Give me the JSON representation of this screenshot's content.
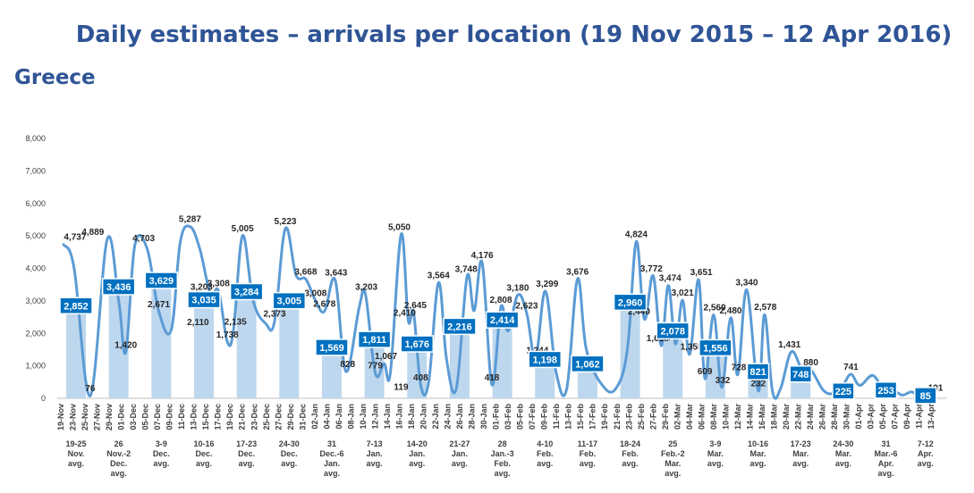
{
  "title": "Daily estimates – arrivals per location (19 Nov 2015 – 12 Apr 2016)",
  "subtitle": "Greece",
  "colors": {
    "bar": "#bdd7ee",
    "line": "#5b9bd5",
    "box": "#0070c0",
    "title": "#2f5496",
    "grid": "#d9d9d9"
  },
  "chart_data": {
    "type": "bar+line",
    "ylim": [
      0,
      8000
    ],
    "yticks": [
      "0",
      "1,000",
      "2,000",
      "3,000",
      "4,000",
      "5,000",
      "6,000",
      "7,000",
      "8,000"
    ],
    "daily_dates": [
      "19-Nov",
      "23-Nov",
      "25-Nov",
      "27-Nov",
      "29-Nov",
      "01-Dec",
      "03-Dec",
      "05-Dec",
      "07-Dec",
      "09-Dec",
      "11-Dec",
      "13-Dec",
      "15-Dec",
      "17-Dec",
      "19-Dec",
      "21-Dec",
      "23-Dec",
      "25-Dec",
      "27-Dec",
      "29-Dec",
      "31-Dec",
      "02-Jan",
      "04-Jan",
      "06-Jan",
      "08-Jan",
      "10-Jan",
      "12-Jan",
      "14-Jan",
      "16-Jan",
      "18-Jan",
      "20-Jan",
      "22-Jan",
      "24-Jan",
      "26-Jan",
      "28-Jan",
      "30-Jan",
      "01-Feb",
      "03-Feb",
      "05-Feb",
      "07-Feb",
      "09-Feb",
      "11-Feb",
      "13-Feb",
      "15-Feb",
      "17-Feb",
      "19-Feb",
      "21-Feb",
      "23-Feb",
      "25-Feb",
      "27-Feb",
      "29-Feb",
      "02-Mar",
      "04-Mar",
      "06-Mar",
      "08-Mar",
      "10-Mar",
      "12-Mar",
      "14-Mar",
      "16-Mar",
      "18-Mar",
      "20-Mar",
      "22-Mar",
      "24-Mar",
      "26-Mar",
      "28-Mar",
      "30-Mar",
      "01-Apr",
      "03-Apr",
      "05-Apr",
      "07-Apr",
      "09-Apr",
      "11-Apr",
      "13-Apr"
    ],
    "daily_values": [
      [
        0.3,
        4737
      ],
      [
        1.5,
        4000
      ],
      [
        3.3,
        76
      ],
      [
        5.2,
        4889
      ],
      [
        6.5,
        3000
      ],
      [
        7.3,
        1420
      ],
      [
        8.3,
        4703
      ],
      [
        9.7,
        4600
      ],
      [
        11.0,
        2671
      ],
      [
        12.4,
        2110
      ],
      [
        13.4,
        4800
      ],
      [
        14.5,
        5287
      ],
      [
        15.6,
        4600
      ],
      [
        16.8,
        3203
      ],
      [
        17.7,
        3308
      ],
      [
        18.7,
        1738
      ],
      [
        19.4,
        2135
      ],
      [
        20.4,
        5005
      ],
      [
        21.6,
        3000
      ],
      [
        23.0,
        2300
      ],
      [
        24.0,
        2373
      ],
      [
        25.2,
        5223
      ],
      [
        26.4,
        3800
      ],
      [
        27.5,
        3668
      ],
      [
        28.6,
        3008
      ],
      [
        29.6,
        2678
      ],
      [
        30.8,
        3643
      ],
      [
        32.0,
        828
      ],
      [
        33.5,
        2800
      ],
      [
        34.2,
        3203
      ],
      [
        35.3,
        779
      ],
      [
        36.3,
        1067
      ],
      [
        37.0,
        800
      ],
      [
        38.2,
        5050
      ],
      [
        39.0,
        2410
      ],
      [
        39.6,
        2645
      ],
      [
        40.4,
        408
      ],
      [
        41.3,
        500
      ],
      [
        42.4,
        3564
      ],
      [
        43.3,
        1200
      ],
      [
        44.4,
        300
      ],
      [
        45.6,
        3748
      ],
      [
        46.4,
        2700
      ],
      [
        47.3,
        4176
      ],
      [
        48.4,
        418
      ],
      [
        49.4,
        2808
      ],
      [
        50.2,
        2076
      ],
      [
        51.3,
        3180
      ],
      [
        52.3,
        2623
      ],
      [
        53.3,
        1244
      ],
      [
        54.4,
        3299
      ],
      [
        55.6,
        800
      ],
      [
        56.8,
        300
      ],
      [
        58.0,
        3676
      ],
      [
        59.0,
        1500
      ],
      [
        60.8,
        400
      ],
      [
        62.3,
        300
      ],
      [
        63.6,
        1500
      ],
      [
        64.6,
        4824
      ],
      [
        65.5,
        2440
      ],
      [
        66.5,
        3772
      ],
      [
        67.4,
        1618
      ],
      [
        68.2,
        3474
      ],
      [
        69.0,
        1675
      ],
      [
        69.8,
        3021
      ],
      [
        70.6,
        1355
      ],
      [
        71.6,
        3651
      ],
      [
        72.3,
        609
      ],
      [
        73.3,
        2569
      ],
      [
        74.2,
        332
      ],
      [
        75.2,
        2480
      ],
      [
        76.0,
        728
      ],
      [
        77.0,
        3340
      ],
      [
        78.3,
        232
      ],
      [
        79.0,
        2578
      ],
      [
        79.9,
        200
      ],
      [
        80.8,
        300
      ],
      [
        82.0,
        1431
      ],
      [
        83.2,
        900
      ],
      [
        84.2,
        880
      ],
      [
        85.6,
        250
      ],
      [
        86.8,
        150
      ],
      [
        87.8,
        400
      ],
      [
        88.7,
        741
      ],
      [
        89.7,
        400
      ],
      [
        91.2,
        700
      ],
      [
        92.6,
        100
      ],
      [
        93.6,
        200
      ],
      [
        94.5,
        100
      ],
      [
        95.5,
        200
      ],
      [
        96.3,
        80
      ],
      [
        97.2,
        101
      ]
    ],
    "daily_labels": [
      {
        "text": "4,737",
        "v": 4737,
        "i": 1.6
      },
      {
        "text": "4,889",
        "v": 4889,
        "i": 3.6
      },
      {
        "text": "76",
        "v": 76,
        "i": 3.3
      },
      {
        "text": "4,703",
        "v": 4703,
        "i": 9.3
      },
      {
        "text": "1,420",
        "v": 1420,
        "i": 7.3
      },
      {
        "text": "2,671",
        "v": 2671,
        "i": 11.0
      },
      {
        "text": "5,287",
        "v": 5287,
        "i": 14.5
      },
      {
        "text": "3,203",
        "v": 3203,
        "i": 15.8
      },
      {
        "text": "2,110",
        "v": 2110,
        "i": 15.4
      },
      {
        "text": "3,308",
        "v": 3308,
        "i": 17.7
      },
      {
        "text": "1,738",
        "v": 1738,
        "i": 18.7
      },
      {
        "text": "2,135",
        "v": 2135,
        "i": 19.6
      },
      {
        "text": "5,005",
        "v": 5005,
        "i": 20.4
      },
      {
        "text": "5,223",
        "v": 5223,
        "i": 25.2
      },
      {
        "text": "2,373",
        "v": 2373,
        "i": 24.0
      },
      {
        "text": "3,668",
        "v": 3668,
        "i": 27.5
      },
      {
        "text": "3,008",
        "v": 3008,
        "i": 28.6
      },
      {
        "text": "3,643",
        "v": 3643,
        "i": 30.9
      },
      {
        "text": "2,678",
        "v": 2678,
        "i": 29.6
      },
      {
        "text": "828",
        "v": 828,
        "i": 32.2
      },
      {
        "text": "3,203",
        "v": 3203,
        "i": 34.3
      },
      {
        "text": "1,067",
        "v": 1067,
        "i": 36.5
      },
      {
        "text": "779",
        "v": 779,
        "i": 35.3
      },
      {
        "text": "5,050",
        "v": 5050,
        "i": 38.0
      },
      {
        "text": "2,410",
        "v": 2410,
        "i": 38.6
      },
      {
        "text": "2,645",
        "v": 2645,
        "i": 39.8
      },
      {
        "text": "119",
        "v": 119,
        "i": 38.2
      },
      {
        "text": "408",
        "v": 408,
        "i": 40.4
      },
      {
        "text": "3,564",
        "v": 3564,
        "i": 42.4
      },
      {
        "text": "3,748",
        "v": 3748,
        "i": 45.5
      },
      {
        "text": "4,176",
        "v": 4176,
        "i": 47.3
      },
      {
        "text": "2,808",
        "v": 2808,
        "i": 49.4
      },
      {
        "text": "418",
        "v": 418,
        "i": 48.4
      },
      {
        "text": "2,076",
        "v": 2076,
        "i": 50.2
      },
      {
        "text": "3,180",
        "v": 3180,
        "i": 51.3
      },
      {
        "text": "2,623",
        "v": 2623,
        "i": 52.3
      },
      {
        "text": "1,244",
        "v": 1244,
        "i": 53.5
      },
      {
        "text": "3,299",
        "v": 3299,
        "i": 54.6
      },
      {
        "text": "3,676",
        "v": 3676,
        "i": 58.0
      },
      {
        "text": "4,824",
        "v": 4824,
        "i": 64.6
      },
      {
        "text": "2,440",
        "v": 2440,
        "i": 64.9
      },
      {
        "text": "3,772",
        "v": 3772,
        "i": 66.3
      },
      {
        "text": "1,618",
        "v": 1618,
        "i": 67.0
      },
      {
        "text": "3,474",
        "v": 3474,
        "i": 68.4
      },
      {
        "text": "1,675",
        "v": 1675,
        "i": 68.9
      },
      {
        "text": "3,021",
        "v": 3021,
        "i": 69.8
      },
      {
        "text": "1,355",
        "v": 1355,
        "i": 70.8
      },
      {
        "text": "3,651",
        "v": 3651,
        "i": 71.9
      },
      {
        "text": "609",
        "v": 609,
        "i": 72.3
      },
      {
        "text": "2,569",
        "v": 2569,
        "i": 73.4
      },
      {
        "text": "332",
        "v": 332,
        "i": 74.3
      },
      {
        "text": "2,480",
        "v": 2480,
        "i": 75.2
      },
      {
        "text": "728",
        "v": 728,
        "i": 76.1
      },
      {
        "text": "3,340",
        "v": 3340,
        "i": 77.0
      },
      {
        "text": "232",
        "v": 232,
        "i": 78.3
      },
      {
        "text": "2,578",
        "v": 2578,
        "i": 79.1
      },
      {
        "text": "1,431",
        "v": 1431,
        "i": 81.8
      },
      {
        "text": "880",
        "v": 880,
        "i": 84.2
      },
      {
        "text": "741",
        "v": 741,
        "i": 88.7
      },
      {
        "text": "101",
        "v": 101,
        "i": 98.2
      }
    ],
    "weekly": [
      {
        "label": [
          "19-25",
          "Nov.",
          "avg."
        ],
        "value": 2852,
        "text": "2,852",
        "i": 2.5
      },
      {
        "label": [
          "26",
          "Nov.-2",
          "Dec.",
          "avg."
        ],
        "value": 3436,
        "text": "3,436",
        "i": 9.5
      },
      {
        "label": [
          "3-9",
          "Dec.",
          "avg."
        ],
        "value": 3629,
        "text": "3,629",
        "i": 16.5
      },
      {
        "label": [
          "10-16",
          "Dec.",
          "avg."
        ],
        "value": 3035,
        "text": "3,035",
        "i": 23.5
      },
      {
        "label": [
          "17-23",
          "Dec.",
          "avg."
        ],
        "value": 3284,
        "text": "3,284",
        "i": 30.5
      },
      {
        "label": [
          "24-30",
          "Dec.",
          "avg."
        ],
        "value": 3005,
        "text": "3,005",
        "i": 37.5
      },
      {
        "label": [
          "31",
          "Dec.-6",
          "Jan.",
          "avg."
        ],
        "value": 1569,
        "text": "1,569",
        "i": 44.5
      },
      {
        "label": [
          "7-13",
          "Jan.",
          "avg."
        ],
        "value": 1811,
        "text": "1,811",
        "i": 51.5
      },
      {
        "label": [
          "14-20",
          "Jan.",
          "avg."
        ],
        "value": 1676,
        "text": "1,676",
        "i": 58.5
      },
      {
        "label": [
          "21-27",
          "Jan.",
          "avg."
        ],
        "value": 2216,
        "text": "2,216",
        "i": 65.5
      },
      {
        "label": [
          "28",
          "Jan.-3",
          "Feb.",
          "avg."
        ],
        "value": 2414,
        "text": "2,414",
        "i": 72.5
      },
      {
        "label": [
          "4-10",
          "Feb.",
          "avg."
        ],
        "value": 1198,
        "text": "1,198",
        "i": 79.5
      },
      {
        "label": [
          "11-17",
          "Feb.",
          "avg."
        ],
        "value": 1062,
        "text": "1,062",
        "i": 86.5
      },
      {
        "label": [
          "18-24",
          "Feb.",
          "avg."
        ],
        "value": 2960,
        "text": "2,960",
        "i": 93.5
      },
      {
        "label": [
          "25",
          "Feb.-2",
          "Mar.",
          "avg."
        ],
        "value": 2078,
        "text": "2,078",
        "i": 100.5
      },
      {
        "label": [
          "3-9",
          "Mar.",
          "avg."
        ],
        "value": 1556,
        "text": "1,556",
        "i": 107.5
      },
      {
        "label": [
          "10-16",
          "Mar.",
          "avg."
        ],
        "value": 821,
        "text": "821",
        "i": 114.5
      },
      {
        "label": [
          "17-23",
          "Mar.",
          "avg."
        ],
        "value": 748,
        "text": "748",
        "i": 121.5
      },
      {
        "label": [
          "24-30",
          "Mar.",
          "avg."
        ],
        "value": 225,
        "text": "225",
        "i": 128.5
      },
      {
        "label": [
          "31",
          "Mar.-6",
          "Apr.",
          "avg."
        ],
        "value": 253,
        "text": "253",
        "i": 135.5
      },
      {
        "label": [
          "7-12",
          "Apr.",
          "avg."
        ],
        "value": 85,
        "text": "85",
        "i": 142.0
      }
    ]
  }
}
